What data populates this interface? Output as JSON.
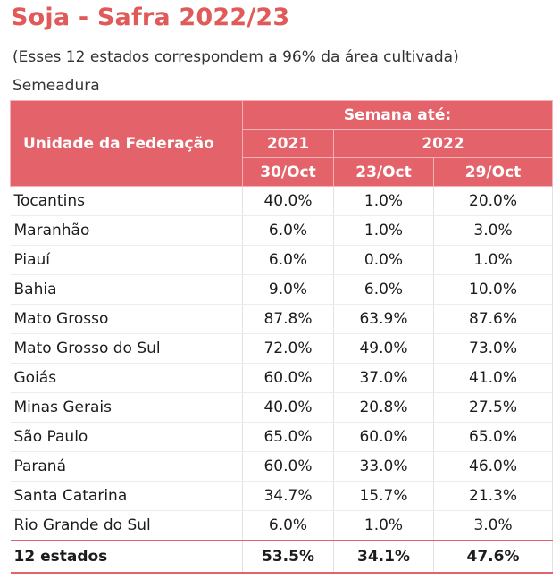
{
  "title": "Soja - Safra 2022/23",
  "subtitle": "(Esses 12 estados correspondem a 96% da área cultivada)",
  "section": "Semeadura",
  "chart_data": {
    "type": "table",
    "header": {
      "unit_label": "Unidade da Federação",
      "group_label": "Semana até:",
      "years": [
        "2021",
        "2022"
      ],
      "dates": [
        "30/Oct",
        "23/Oct",
        "29/Oct"
      ]
    },
    "rows": [
      {
        "state": "Tocantins",
        "values": [
          "40.0%",
          "1.0%",
          "20.0%"
        ]
      },
      {
        "state": "Maranhão",
        "values": [
          "6.0%",
          "1.0%",
          "3.0%"
        ]
      },
      {
        "state": "Piauí",
        "values": [
          "6.0%",
          "0.0%",
          "1.0%"
        ]
      },
      {
        "state": "Bahia",
        "values": [
          "9.0%",
          "6.0%",
          "10.0%"
        ]
      },
      {
        "state": "Mato Grosso",
        "values": [
          "87.8%",
          "63.9%",
          "87.6%"
        ]
      },
      {
        "state": "Mato Grosso do Sul",
        "values": [
          "72.0%",
          "49.0%",
          "73.0%"
        ]
      },
      {
        "state": "Goiás",
        "values": [
          "60.0%",
          "37.0%",
          "41.0%"
        ]
      },
      {
        "state": "Minas Gerais",
        "values": [
          "40.0%",
          "20.8%",
          "27.5%"
        ]
      },
      {
        "state": "São Paulo",
        "values": [
          "65.0%",
          "60.0%",
          "65.0%"
        ]
      },
      {
        "state": "Paraná",
        "values": [
          "60.0%",
          "33.0%",
          "46.0%"
        ]
      },
      {
        "state": "Santa Catarina",
        "values": [
          "34.7%",
          "15.7%",
          "21.3%"
        ]
      },
      {
        "state": "Rio Grande do Sul",
        "values": [
          "6.0%",
          "1.0%",
          "3.0%"
        ]
      }
    ],
    "total": {
      "state": "12 estados",
      "values": [
        "53.5%",
        "34.1%",
        "47.6%"
      ]
    }
  },
  "colors": {
    "accent": "#e4626a",
    "title": "#e05a5a"
  }
}
